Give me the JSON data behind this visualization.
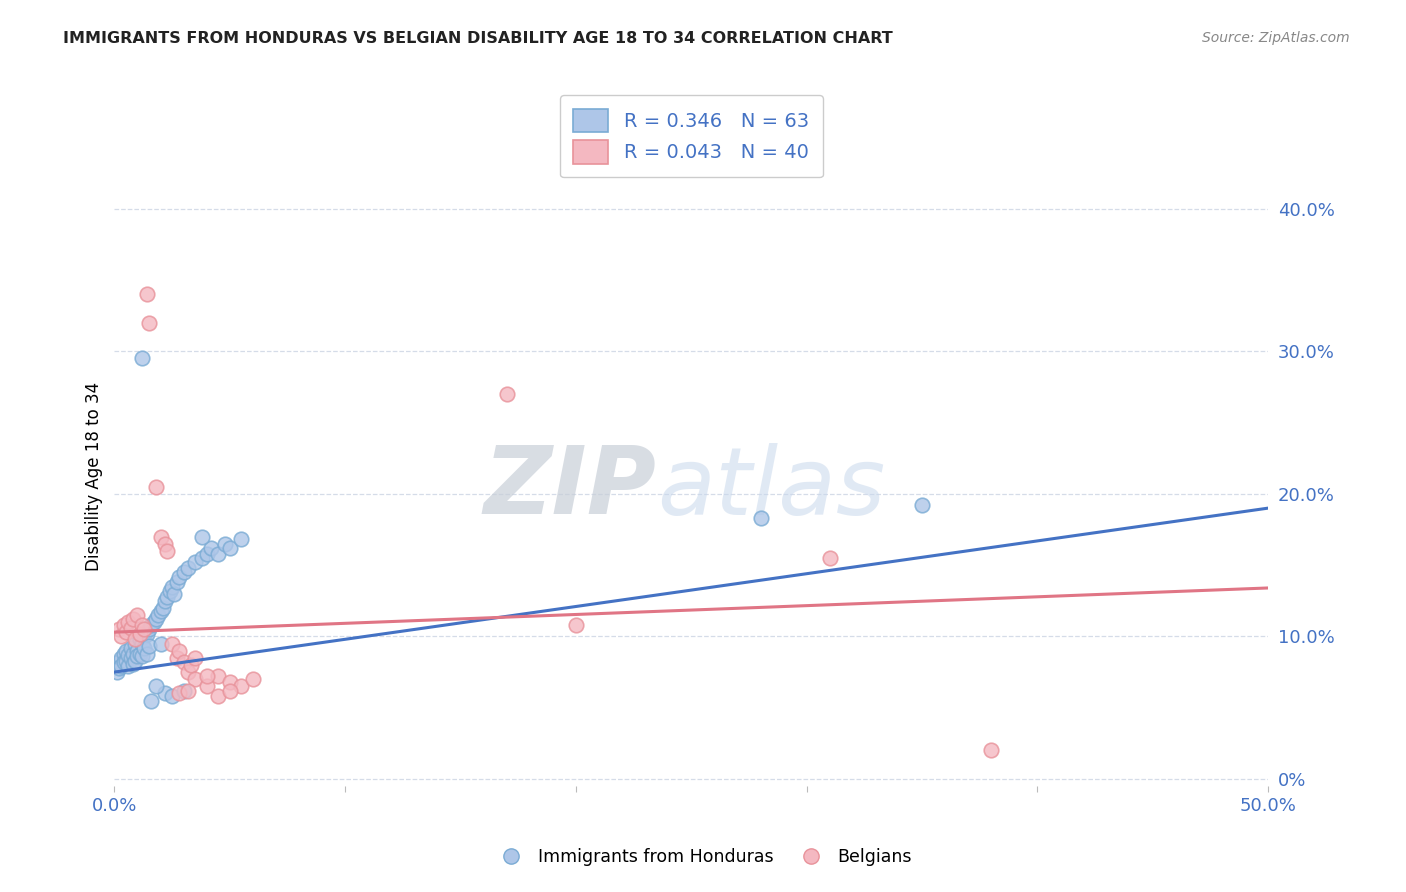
{
  "title": "IMMIGRANTS FROM HONDURAS VS BELGIAN DISABILITY AGE 18 TO 34 CORRELATION CHART",
  "source": "Source: ZipAtlas.com",
  "ylabel": "Disability Age 18 to 34",
  "ylabel_right_vals": [
    0.0,
    0.1,
    0.2,
    0.3,
    0.4
  ],
  "ylabel_right_labels": [
    "0%",
    "10.0%",
    "20.0%",
    "30.0%",
    "40.0%"
  ],
  "xlim": [
    0.0,
    0.5
  ],
  "ylim": [
    -0.005,
    0.43
  ],
  "legend_blue": {
    "R": "0.346",
    "N": "63"
  },
  "legend_pink": {
    "R": "0.043",
    "N": "40"
  },
  "blue_scatter": [
    [
      0.001,
      0.08
    ],
    [
      0.001,
      0.075
    ],
    [
      0.002,
      0.082
    ],
    [
      0.002,
      0.078
    ],
    [
      0.003,
      0.085
    ],
    [
      0.003,
      0.079
    ],
    [
      0.004,
      0.088
    ],
    [
      0.004,
      0.082
    ],
    [
      0.005,
      0.09
    ],
    [
      0.005,
      0.083
    ],
    [
      0.006,
      0.087
    ],
    [
      0.006,
      0.079
    ],
    [
      0.007,
      0.092
    ],
    [
      0.007,
      0.085
    ],
    [
      0.008,
      0.088
    ],
    [
      0.008,
      0.081
    ],
    [
      0.009,
      0.095
    ],
    [
      0.009,
      0.083
    ],
    [
      0.01,
      0.09
    ],
    [
      0.01,
      0.086
    ],
    [
      0.011,
      0.098
    ],
    [
      0.011,
      0.088
    ],
    [
      0.012,
      0.095
    ],
    [
      0.012,
      0.086
    ],
    [
      0.013,
      0.1
    ],
    [
      0.013,
      0.092
    ],
    [
      0.014,
      0.102
    ],
    [
      0.014,
      0.088
    ],
    [
      0.015,
      0.105
    ],
    [
      0.015,
      0.093
    ],
    [
      0.016,
      0.108
    ],
    [
      0.017,
      0.11
    ],
    [
      0.018,
      0.112
    ],
    [
      0.019,
      0.115
    ],
    [
      0.02,
      0.118
    ],
    [
      0.02,
      0.095
    ],
    [
      0.021,
      0.12
    ],
    [
      0.022,
      0.125
    ],
    [
      0.023,
      0.128
    ],
    [
      0.024,
      0.132
    ],
    [
      0.025,
      0.135
    ],
    [
      0.026,
      0.13
    ],
    [
      0.027,
      0.138
    ],
    [
      0.028,
      0.142
    ],
    [
      0.03,
      0.145
    ],
    [
      0.032,
      0.148
    ],
    [
      0.035,
      0.152
    ],
    [
      0.038,
      0.155
    ],
    [
      0.04,
      0.158
    ],
    [
      0.042,
      0.162
    ],
    [
      0.045,
      0.158
    ],
    [
      0.048,
      0.165
    ],
    [
      0.05,
      0.162
    ],
    [
      0.055,
      0.168
    ],
    [
      0.012,
      0.295
    ],
    [
      0.28,
      0.183
    ],
    [
      0.35,
      0.192
    ],
    [
      0.038,
      0.17
    ],
    [
      0.022,
      0.06
    ],
    [
      0.018,
      0.065
    ],
    [
      0.016,
      0.055
    ],
    [
      0.025,
      0.058
    ],
    [
      0.03,
      0.062
    ]
  ],
  "pink_scatter": [
    [
      0.002,
      0.105
    ],
    [
      0.003,
      0.1
    ],
    [
      0.004,
      0.108
    ],
    [
      0.005,
      0.103
    ],
    [
      0.006,
      0.11
    ],
    [
      0.007,
      0.106
    ],
    [
      0.008,
      0.112
    ],
    [
      0.009,
      0.098
    ],
    [
      0.01,
      0.115
    ],
    [
      0.011,
      0.102
    ],
    [
      0.012,
      0.108
    ],
    [
      0.013,
      0.105
    ],
    [
      0.014,
      0.34
    ],
    [
      0.015,
      0.32
    ],
    [
      0.018,
      0.205
    ],
    [
      0.02,
      0.17
    ],
    [
      0.022,
      0.165
    ],
    [
      0.023,
      0.16
    ],
    [
      0.025,
      0.095
    ],
    [
      0.027,
      0.085
    ],
    [
      0.028,
      0.09
    ],
    [
      0.03,
      0.082
    ],
    [
      0.032,
      0.075
    ],
    [
      0.033,
      0.08
    ],
    [
      0.035,
      0.07
    ],
    [
      0.04,
      0.065
    ],
    [
      0.045,
      0.072
    ],
    [
      0.05,
      0.068
    ],
    [
      0.055,
      0.065
    ],
    [
      0.06,
      0.07
    ],
    [
      0.17,
      0.27
    ],
    [
      0.2,
      0.108
    ],
    [
      0.31,
      0.155
    ],
    [
      0.035,
      0.085
    ],
    [
      0.028,
      0.06
    ],
    [
      0.032,
      0.062
    ],
    [
      0.38,
      0.02
    ],
    [
      0.04,
      0.072
    ],
    [
      0.045,
      0.058
    ],
    [
      0.05,
      0.062
    ]
  ],
  "blue_line_intercept": 0.075,
  "blue_line_slope": 0.23,
  "pink_line_intercept": 0.103,
  "pink_line_slope": 0.062,
  "watermark_zip": "ZIP",
  "watermark_atlas": "atlas",
  "grid_color": "#d5dce8",
  "blue_marker_face": "#aec6e8",
  "blue_marker_edge": "#7aabd4",
  "pink_marker_face": "#f4b8c1",
  "pink_marker_edge": "#e8929a",
  "line_blue": "#4472c4",
  "line_pink": "#e07585",
  "tick_color": "#4472c4",
  "title_color": "#222222",
  "source_color": "#888888"
}
